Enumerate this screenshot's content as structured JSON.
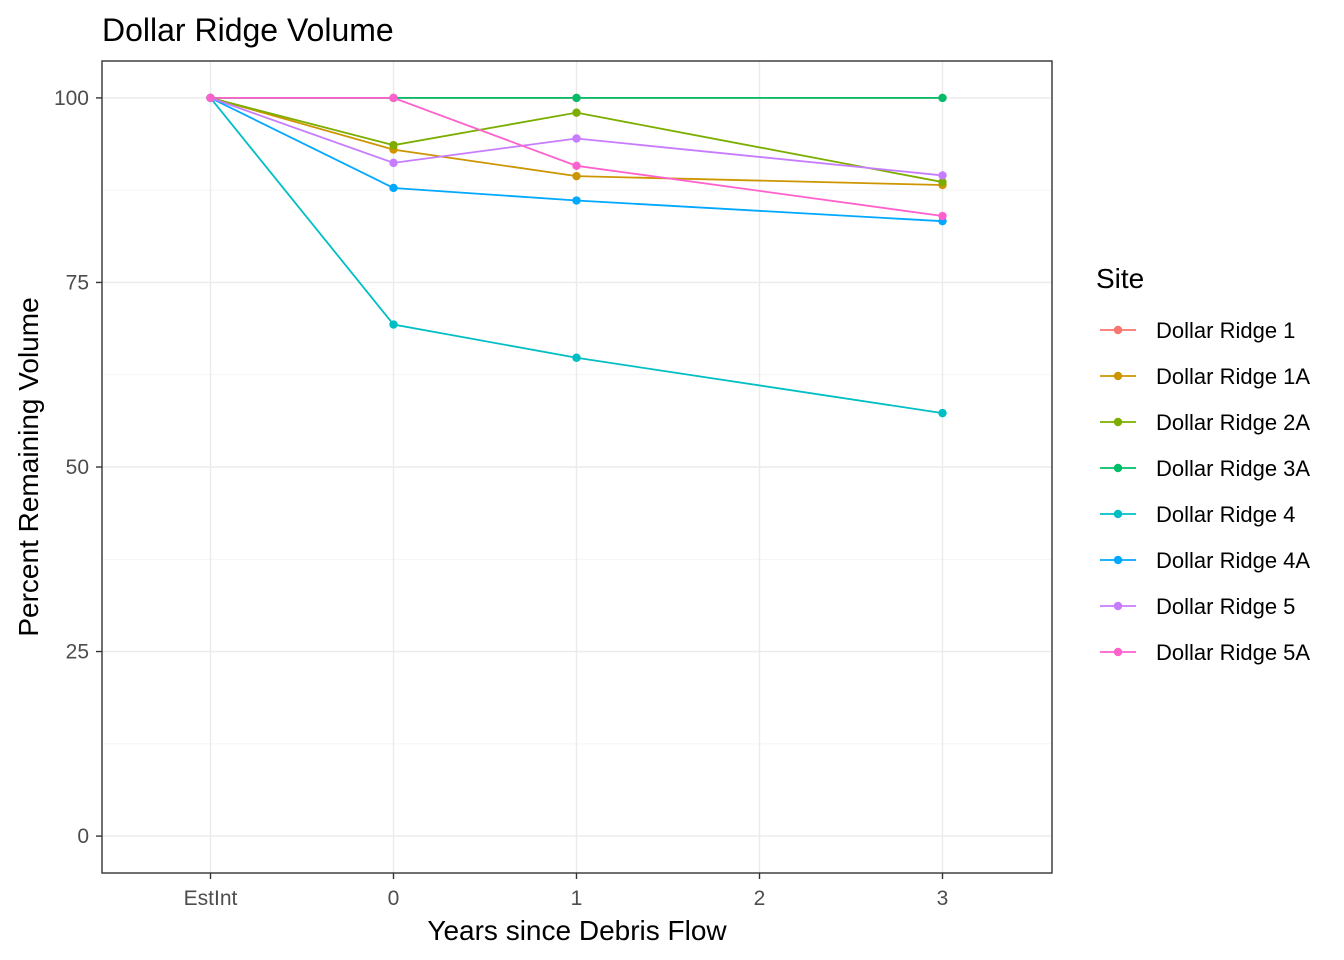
{
  "chart_data": {
    "type": "line",
    "title": "Dollar Ridge Volume",
    "xlabel": "Years since Debris Flow",
    "ylabel": "Percent Remaining Volume",
    "x_ticks": [
      "EstInt",
      "0",
      "1",
      "2",
      "3"
    ],
    "x_values": [
      "EstInt",
      "0",
      "1",
      "3"
    ],
    "ylim": [
      -5,
      105
    ],
    "y_ticks": [
      0,
      25,
      50,
      75,
      100
    ],
    "grid": true,
    "legend": {
      "title": "Site",
      "position": "right"
    },
    "series": [
      {
        "name": "Dollar Ridge 1",
        "color": "#F8766D",
        "values": [
          100,
          100,
          100,
          100
        ]
      },
      {
        "name": "Dollar Ridge 1A",
        "color": "#CD9600",
        "values": [
          100,
          93.0,
          89.4,
          88.2
        ]
      },
      {
        "name": "Dollar Ridge 2A",
        "color": "#7CAE00",
        "values": [
          100,
          93.6,
          98.0,
          88.6
        ]
      },
      {
        "name": "Dollar Ridge 3A",
        "color": "#00BE67",
        "values": [
          100,
          100,
          100,
          100
        ]
      },
      {
        "name": "Dollar Ridge 4",
        "color": "#00BFC4",
        "values": [
          100,
          69.3,
          64.8,
          57.3
        ]
      },
      {
        "name": "Dollar Ridge 4A",
        "color": "#00A9FF",
        "values": [
          100,
          87.8,
          86.1,
          83.3
        ]
      },
      {
        "name": "Dollar Ridge 5",
        "color": "#C77CFF",
        "values": [
          100,
          91.2,
          94.5,
          89.5
        ]
      },
      {
        "name": "Dollar Ridge 5A",
        "color": "#FF61CC",
        "values": [
          100,
          100,
          90.8,
          84.0
        ]
      }
    ]
  }
}
